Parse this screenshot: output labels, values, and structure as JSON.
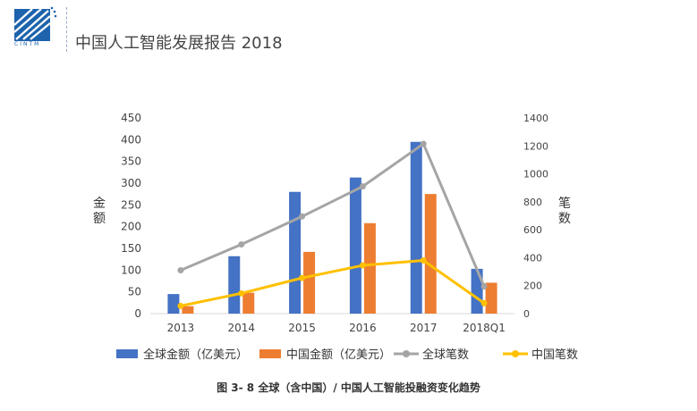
{
  "header": {
    "title": "中国人工智能发展报告 2018",
    "logo_text": "CINTM"
  },
  "colors": {
    "global_amount": "#4472C4",
    "china_amount": "#ED7D31",
    "global_count": "#A5A5A5",
    "china_count": "#FFC000",
    "axis": "#d9d9d9",
    "brand": "#1d63ad"
  },
  "chart_data": {
    "type": "bar",
    "title": "",
    "categories": [
      "2013",
      "2014",
      "2015",
      "2016",
      "2017",
      "2018Q1"
    ],
    "ylabel": "金额",
    "y2label": "笔数",
    "ylim": [
      0,
      450
    ],
    "y2lim": [
      0,
      1400
    ],
    "yticks": [
      "0",
      "50",
      "100",
      "150",
      "200",
      "250",
      "300",
      "350",
      "400",
      "450"
    ],
    "y2ticks": [
      "0",
      "200",
      "400",
      "600",
      "800",
      "1000",
      "1200",
      "1400"
    ],
    "grid": false,
    "legend_position": "bottom",
    "series": [
      {
        "name": "全球金额（亿美元）",
        "type": "bar",
        "axis": "left",
        "values": [
          45,
          132,
          280,
          313,
          395,
          103
        ]
      },
      {
        "name": "中国金额（亿美元）",
        "type": "bar",
        "axis": "left",
        "values": [
          17,
          48,
          142,
          208,
          275,
          71
        ]
      },
      {
        "name": "全球笔数",
        "type": "line",
        "axis": "right",
        "values": [
          310,
          495,
          695,
          910,
          1215,
          195
        ]
      },
      {
        "name": "中国笔数",
        "type": "line",
        "axis": "right",
        "values": [
          55,
          145,
          255,
          345,
          380,
          75
        ]
      }
    ]
  },
  "caption": "图 3- 8 全球（含中国）/ 中国人工智能投融资变化趋势"
}
